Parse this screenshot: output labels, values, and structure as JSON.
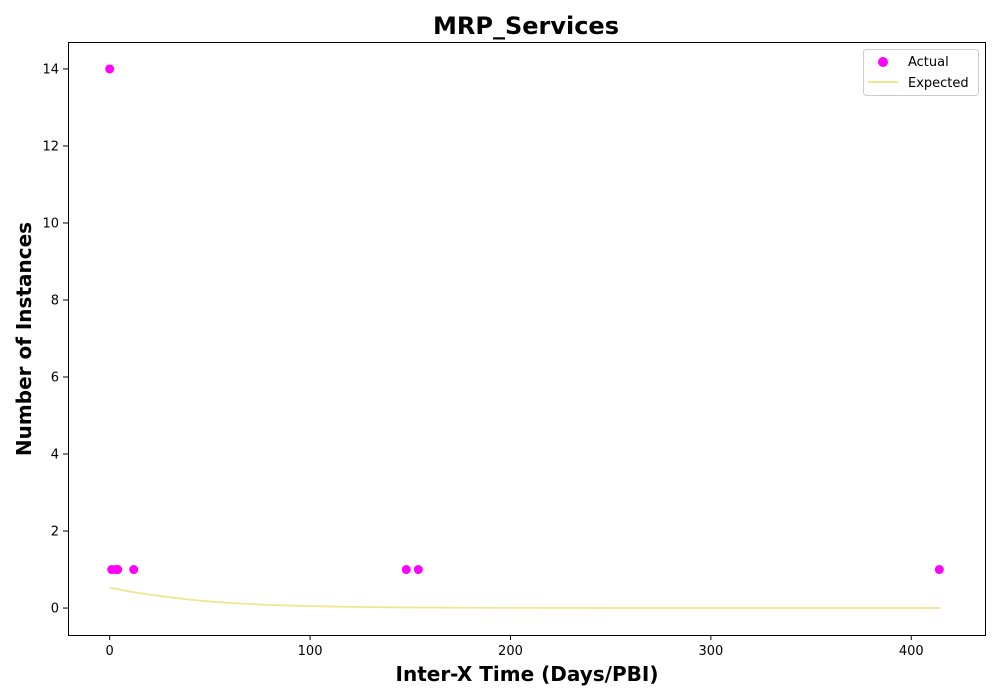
{
  "chart_data": {
    "type": "scatter",
    "title": "MRP_Services",
    "xlabel": "Inter-X Time (Days/PBI)",
    "ylabel": "Number of Instances",
    "xlim": [
      -20.8,
      436.8
    ],
    "ylim": [
      -0.7,
      14.7
    ],
    "xticks": [
      0,
      100,
      200,
      300,
      400
    ],
    "yticks": [
      0,
      2,
      4,
      6,
      8,
      10,
      12,
      14
    ],
    "grid": false,
    "legend_position": "top-right",
    "series": [
      {
        "name": "Actual",
        "kind": "scatter",
        "color": "#ff00ff",
        "points": [
          {
            "x": 0,
            "y": 14
          },
          {
            "x": 1,
            "y": 1
          },
          {
            "x": 3,
            "y": 1
          },
          {
            "x": 4,
            "y": 1
          },
          {
            "x": 12,
            "y": 1
          },
          {
            "x": 148,
            "y": 1
          },
          {
            "x": 154,
            "y": 1
          },
          {
            "x": 414,
            "y": 1
          }
        ]
      },
      {
        "name": "Expected",
        "kind": "line",
        "color": "#f0e68c",
        "points": [
          {
            "x": 0,
            "y": 0.53
          },
          {
            "x": 10,
            "y": 0.43
          },
          {
            "x": 20,
            "y": 0.35
          },
          {
            "x": 30,
            "y": 0.28
          },
          {
            "x": 40,
            "y": 0.22
          },
          {
            "x": 50,
            "y": 0.17
          },
          {
            "x": 60,
            "y": 0.13
          },
          {
            "x": 80,
            "y": 0.08
          },
          {
            "x": 100,
            "y": 0.05
          },
          {
            "x": 120,
            "y": 0.03
          },
          {
            "x": 150,
            "y": 0.015
          },
          {
            "x": 200,
            "y": 0.005
          },
          {
            "x": 250,
            "y": 0.002
          },
          {
            "x": 300,
            "y": 0.001
          },
          {
            "x": 350,
            "y": 0.0
          },
          {
            "x": 415,
            "y": 0.0
          }
        ]
      }
    ]
  }
}
